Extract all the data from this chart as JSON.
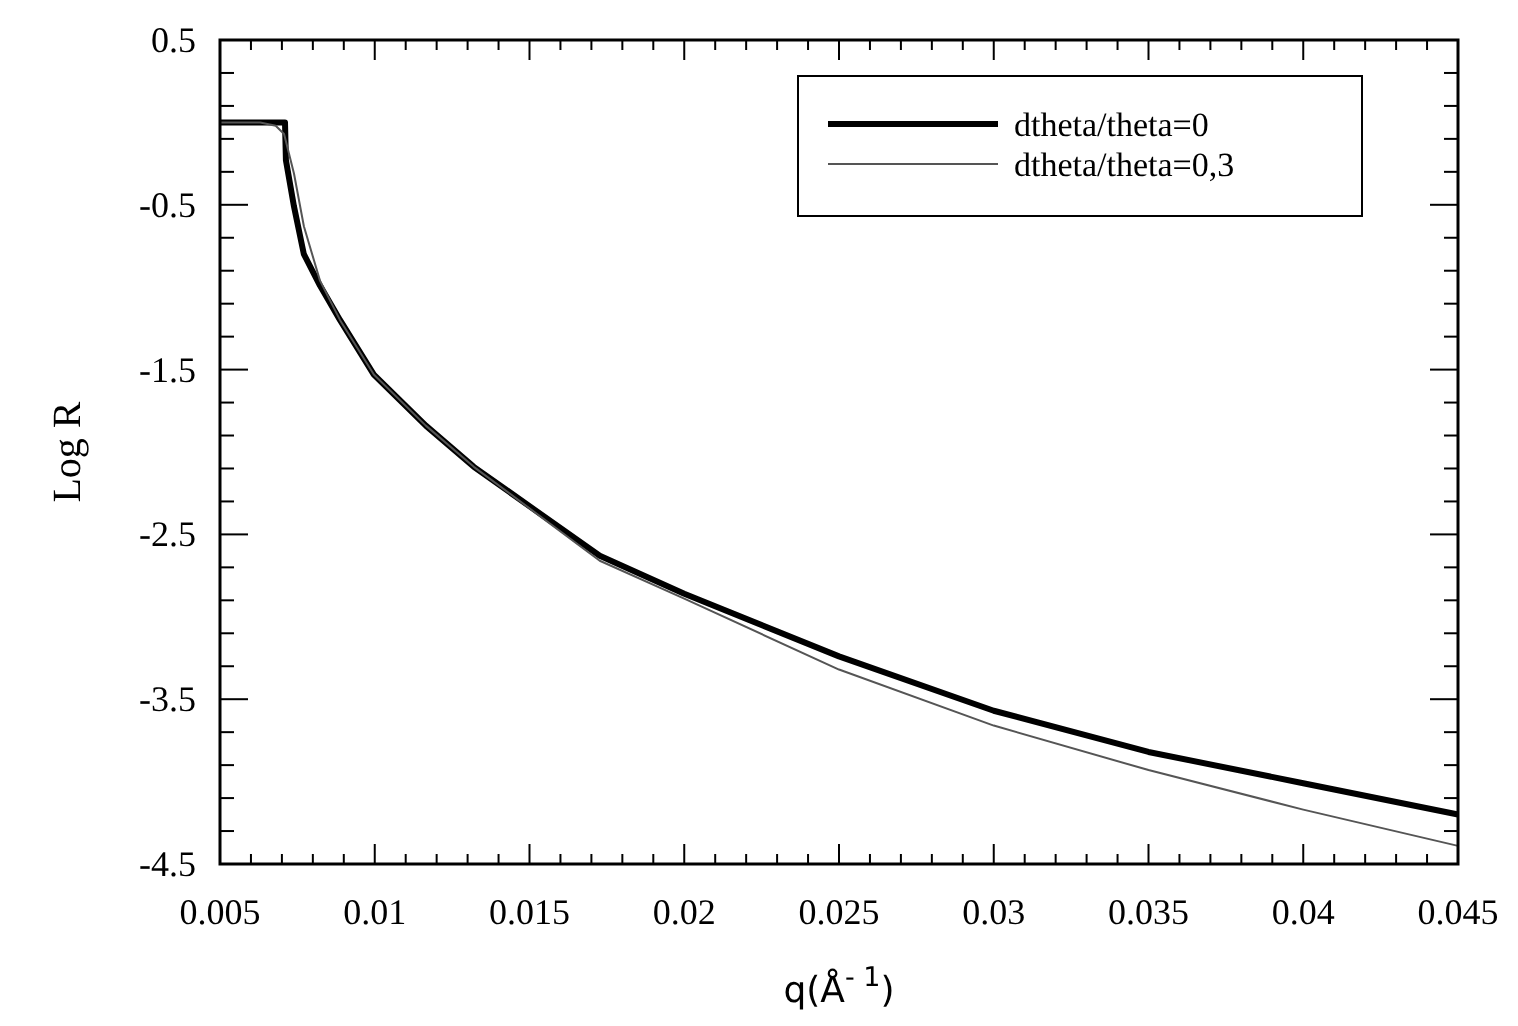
{
  "chart_data": {
    "type": "line",
    "xlabel": "q(Å$^{- 1}$)",
    "ylabel": "Log R",
    "xlim": [
      0.005,
      0.045
    ],
    "ylim": [
      -4.5,
      0.5
    ],
    "xticks": [
      {
        "value": 0.005,
        "label": "0.005"
      },
      {
        "value": 0.006,
        "label": null
      },
      {
        "value": 0.007,
        "label": null
      },
      {
        "value": 0.008,
        "label": null
      },
      {
        "value": 0.009,
        "label": null
      },
      {
        "value": 0.01,
        "label": "0.01"
      },
      {
        "value": 0.011,
        "label": null
      },
      {
        "value": 0.012,
        "label": null
      },
      {
        "value": 0.013,
        "label": null
      },
      {
        "value": 0.014,
        "label": null
      },
      {
        "value": 0.015,
        "label": "0.015"
      },
      {
        "value": 0.016,
        "label": null
      },
      {
        "value": 0.017,
        "label": null
      },
      {
        "value": 0.018,
        "label": null
      },
      {
        "value": 0.019,
        "label": null
      },
      {
        "value": 0.02,
        "label": "0.02"
      },
      {
        "value": 0.021,
        "label": null
      },
      {
        "value": 0.022,
        "label": null
      },
      {
        "value": 0.023,
        "label": null
      },
      {
        "value": 0.024,
        "label": null
      },
      {
        "value": 0.025,
        "label": "0.025"
      },
      {
        "value": 0.026,
        "label": null
      },
      {
        "value": 0.027,
        "label": null
      },
      {
        "value": 0.028,
        "label": null
      },
      {
        "value": 0.029,
        "label": null
      },
      {
        "value": 0.03,
        "label": "0.03"
      },
      {
        "value": 0.031,
        "label": null
      },
      {
        "value": 0.032,
        "label": null
      },
      {
        "value": 0.033,
        "label": null
      },
      {
        "value": 0.034,
        "label": null
      },
      {
        "value": 0.035,
        "label": "0.035"
      },
      {
        "value": 0.036,
        "label": null
      },
      {
        "value": 0.037,
        "label": null
      },
      {
        "value": 0.038,
        "label": null
      },
      {
        "value": 0.039,
        "label": null
      },
      {
        "value": 0.04,
        "label": "0.04"
      },
      {
        "value": 0.041,
        "label": null
      },
      {
        "value": 0.042,
        "label": null
      },
      {
        "value": 0.043,
        "label": null
      },
      {
        "value": 0.044,
        "label": null
      },
      {
        "value": 0.045,
        "label": "0.045"
      }
    ],
    "yticks": [
      -4.5,
      {
        "value": -4.3,
        "label": null
      },
      {
        "value": -4.1,
        "label": null
      },
      {
        "value": -3.9,
        "label": null
      },
      {
        "value": -3.7,
        "label": null
      },
      -3.5,
      {
        "value": -3.3,
        "label": null
      },
      {
        "value": -3.1,
        "label": null
      },
      {
        "value": -2.9,
        "label": null
      },
      {
        "value": -2.7,
        "label": null
      },
      -2.5,
      {
        "value": -2.3,
        "label": null
      },
      {
        "value": -2.1,
        "label": null
      },
      {
        "value": -1.9,
        "label": null
      },
      {
        "value": -1.7,
        "label": null
      },
      -1.5,
      {
        "value": -1.3,
        "label": null
      },
      {
        "value": -1.1,
        "label": null
      },
      {
        "value": -0.9,
        "label": null
      },
      {
        "value": -0.7,
        "label": null
      },
      -0.5,
      {
        "value": -0.3,
        "label": null
      },
      {
        "value": -0.1,
        "label": null
      },
      {
        "value": 0.1,
        "label": null
      },
      {
        "value": 0.3,
        "label": null
      },
      0.5
    ],
    "grid": false,
    "legend": "top right",
    "marker": "none",
    "line_style": "solid",
    "series": [
      {
        "name": "dtheta/theta=0",
        "color": "#000000",
        "x": [
          0.005,
          0.0071,
          0.00713,
          0.00739,
          0.00771,
          0.00823,
          0.00888,
          0.00997,
          0.01165,
          0.0132,
          0.01727,
          0.02,
          0.025,
          0.03,
          0.035,
          0.04,
          0.045
        ],
        "values": [
          0,
          0,
          -0.23,
          -0.51,
          -0.8,
          -0.99,
          -1.2,
          -1.53,
          -1.84,
          -2.09,
          -2.63,
          -2.86,
          -3.24,
          -3.57,
          -3.82,
          -4.01,
          -4.2
        ]
      },
      {
        "name": "dtheta/theta=0,3",
        "color": "#555555",
        "x": [
          0.005,
          0.0063,
          0.0068,
          0.00707,
          0.00739,
          0.00771,
          0.00823,
          0.00888,
          0.00997,
          0.01165,
          0.0132,
          0.01727,
          0.02,
          0.025,
          0.03,
          0.035,
          0.04,
          0.045
        ],
        "values": [
          0,
          0,
          -0.02,
          -0.07,
          -0.31,
          -0.63,
          -0.96,
          -1.2,
          -1.53,
          -1.84,
          -2.09,
          -2.66,
          -2.89,
          -3.32,
          -3.66,
          -3.93,
          -4.17,
          -4.39
        ]
      }
    ]
  }
}
